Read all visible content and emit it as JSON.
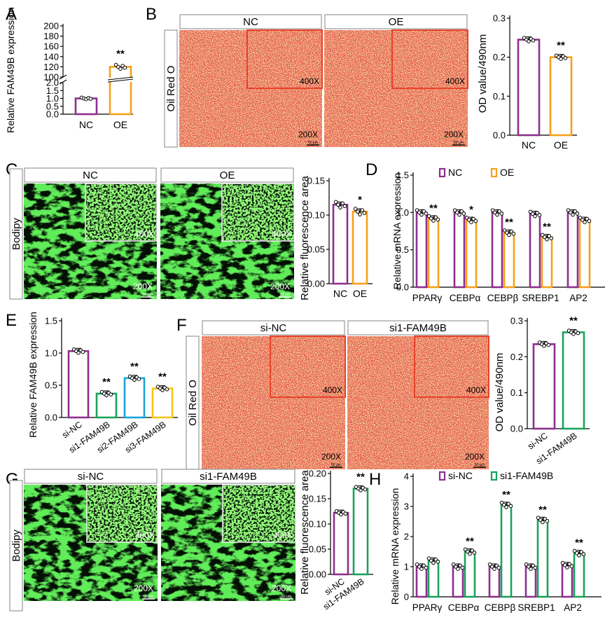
{
  "colors": {
    "nc": "#8e2f8e",
    "oe": "#f5a11c",
    "si1": "#19a35b",
    "si2": "#1aa3d9",
    "si3": "#f5c518",
    "orO": "#fbf3a2",
    "gfp": "#14a014",
    "box": "#e8422a"
  },
  "panels": {
    "A": {
      "letter": "A",
      "ylabel": "Relative FAM49B expression",
      "ticks_low": [
        "0.0",
        "0.5",
        "1.0",
        "1.5",
        "2.0"
      ],
      "ticks_high": [
        "100",
        "120",
        "140",
        "160",
        "180",
        "200"
      ],
      "categories": [
        "NC",
        "OE"
      ],
      "values": [
        1.0,
        120
      ],
      "sig": [
        "",
        "**"
      ]
    },
    "B": {
      "letter": "B",
      "side_label": "Oil Red O",
      "titles": [
        "NC",
        "OE"
      ],
      "inset_mag": "400X",
      "main_mag": "200X",
      "scale": "50 μm",
      "chart": {
        "ylabel": "OD value/490nm",
        "ticks": [
          "0.0",
          "0.1",
          "0.2",
          "0.3"
        ],
        "categories": [
          "NC",
          "OE"
        ],
        "values": [
          0.245,
          0.2
        ],
        "sig": [
          "",
          "**"
        ]
      }
    },
    "C": {
      "letter": "C",
      "side_label": "Bodipy",
      "titles": [
        "NC",
        "OE"
      ],
      "inset_mag": "400X",
      "main_mag": "200X",
      "scale": "50 μm",
      "chart": {
        "ylabel": "Relative fluorescence area",
        "ticks": [
          "0.00",
          "0.05",
          "0.10",
          "0.15"
        ],
        "categories": [
          "NC",
          "OE"
        ],
        "values": [
          0.115,
          0.105
        ],
        "sig": [
          "",
          "*"
        ]
      }
    },
    "D": {
      "letter": "D",
      "ylabel": "Relative mRNA expression",
      "ticks": [
        "0.0",
        "0.5",
        "1.0",
        "1.5"
      ],
      "legend": [
        "NC",
        "OE"
      ],
      "categories": [
        "PPARγ",
        "CEBPα",
        "CEBPβ",
        "SREBP1",
        "AP2"
      ],
      "series": [
        {
          "name": "NC",
          "values": [
            1.0,
            1.0,
            1.0,
            0.98,
            1.0
          ]
        },
        {
          "name": "OE",
          "values": [
            0.92,
            0.9,
            0.73,
            0.67,
            0.9
          ]
        }
      ],
      "sig": [
        "**",
        "*",
        "**",
        "**",
        ""
      ]
    },
    "E": {
      "letter": "E",
      "ylabel": "Relative FAM49B expression",
      "ticks": [
        "0.0",
        "0.5",
        "1.0",
        "1.5"
      ],
      "categories": [
        "si-NC",
        "si1-FAM49B",
        "si2-FAM49B",
        "si3-FAM49B"
      ],
      "values": [
        1.03,
        0.37,
        0.61,
        0.45
      ],
      "sig": [
        "",
        "**",
        "**",
        "**"
      ]
    },
    "F": {
      "letter": "F",
      "side_label": "Oil Red O",
      "titles": [
        "si-NC",
        "si1-FAM49B"
      ],
      "inset_mag": "400X",
      "main_mag": "200X",
      "scale": "50 μm",
      "chart": {
        "ylabel": "OD value/490nm",
        "ticks": [
          "0.0",
          "0.1",
          "0.2",
          "0.3"
        ],
        "categories": [
          "si-NC",
          "si1-FAM49B"
        ],
        "values": [
          0.235,
          0.268
        ],
        "sig": [
          "",
          "**"
        ]
      }
    },
    "G": {
      "letter": "G",
      "side_label": "Bodipy",
      "titles": [
        "si-NC",
        "si1-FAM49B"
      ],
      "inset_mag": "400X",
      "main_mag": "200X",
      "scale": "50 μm",
      "chart": {
        "ylabel": "Relative fluorescence area",
        "ticks": [
          "0.00",
          "0.05",
          "0.10",
          "0.15",
          "0.20"
        ],
        "categories": [
          "si-NC",
          "si1-FAM49B"
        ],
        "values": [
          0.122,
          0.17
        ],
        "sig": [
          "",
          "**"
        ]
      }
    },
    "H": {
      "letter": "H",
      "ylabel": "Relative mRNA expression",
      "ticks": [
        "0",
        "1",
        "2",
        "3",
        "4"
      ],
      "legend": [
        "si-NC",
        "si1-FAM49B"
      ],
      "categories": [
        "PPARγ",
        "CEBPα",
        "CEBPβ",
        "SREBP1",
        "AP2"
      ],
      "series": [
        {
          "name": "si-NC",
          "values": [
            1.0,
            1.0,
            1.0,
            1.0,
            1.05
          ]
        },
        {
          "name": "si1-FAM49B",
          "values": [
            1.2,
            1.5,
            3.05,
            2.55,
            1.45
          ]
        }
      ],
      "sig": [
        "",
        "**",
        "**",
        "**",
        "**"
      ]
    }
  },
  "chart_data": [
    {
      "type": "bar",
      "title": "A",
      "ylabel": "Relative FAM49B expression",
      "categories": [
        "NC",
        "OE"
      ],
      "values": [
        1.0,
        120
      ],
      "ylim": [
        0,
        200
      ],
      "axis_break": [
        2.0,
        100
      ]
    },
    {
      "type": "bar",
      "title": "B",
      "ylabel": "OD value/490nm",
      "categories": [
        "NC",
        "OE"
      ],
      "values": [
        0.245,
        0.2
      ],
      "ylim": [
        0,
        0.3
      ]
    },
    {
      "type": "bar",
      "title": "C",
      "ylabel": "Relative fluorescence area",
      "categories": [
        "NC",
        "OE"
      ],
      "values": [
        0.115,
        0.105
      ],
      "ylim": [
        0,
        0.15
      ]
    },
    {
      "type": "bar",
      "title": "D",
      "ylabel": "Relative mRNA expression",
      "categories": [
        "PPARγ",
        "CEBPα",
        "CEBPβ",
        "SREBP1",
        "AP2"
      ],
      "series": [
        {
          "name": "NC",
          "values": [
            1.0,
            1.0,
            1.0,
            0.98,
            1.0
          ]
        },
        {
          "name": "OE",
          "values": [
            0.92,
            0.9,
            0.73,
            0.67,
            0.9
          ]
        }
      ],
      "ylim": [
        0,
        1.5
      ]
    },
    {
      "type": "bar",
      "title": "E",
      "ylabel": "Relative FAM49B expression",
      "categories": [
        "si-NC",
        "si1-FAM49B",
        "si2-FAM49B",
        "si3-FAM49B"
      ],
      "values": [
        1.03,
        0.37,
        0.61,
        0.45
      ],
      "ylim": [
        0,
        1.5
      ]
    },
    {
      "type": "bar",
      "title": "F",
      "ylabel": "OD value/490nm",
      "categories": [
        "si-NC",
        "si1-FAM49B"
      ],
      "values": [
        0.235,
        0.268
      ],
      "ylim": [
        0,
        0.3
      ]
    },
    {
      "type": "bar",
      "title": "G",
      "ylabel": "Relative fluorescence area",
      "categories": [
        "si-NC",
        "si1-FAM49B"
      ],
      "values": [
        0.122,
        0.17
      ],
      "ylim": [
        0,
        0.2
      ]
    },
    {
      "type": "bar",
      "title": "H",
      "ylabel": "Relative mRNA expression",
      "categories": [
        "PPARγ",
        "CEBPα",
        "CEBPβ",
        "SREBP1",
        "AP2"
      ],
      "series": [
        {
          "name": "si-NC",
          "values": [
            1.0,
            1.0,
            1.0,
            1.0,
            1.05
          ]
        },
        {
          "name": "si1-FAM49B",
          "values": [
            1.2,
            1.5,
            3.05,
            2.55,
            1.45
          ]
        }
      ],
      "ylim": [
        0,
        4
      ]
    }
  ]
}
